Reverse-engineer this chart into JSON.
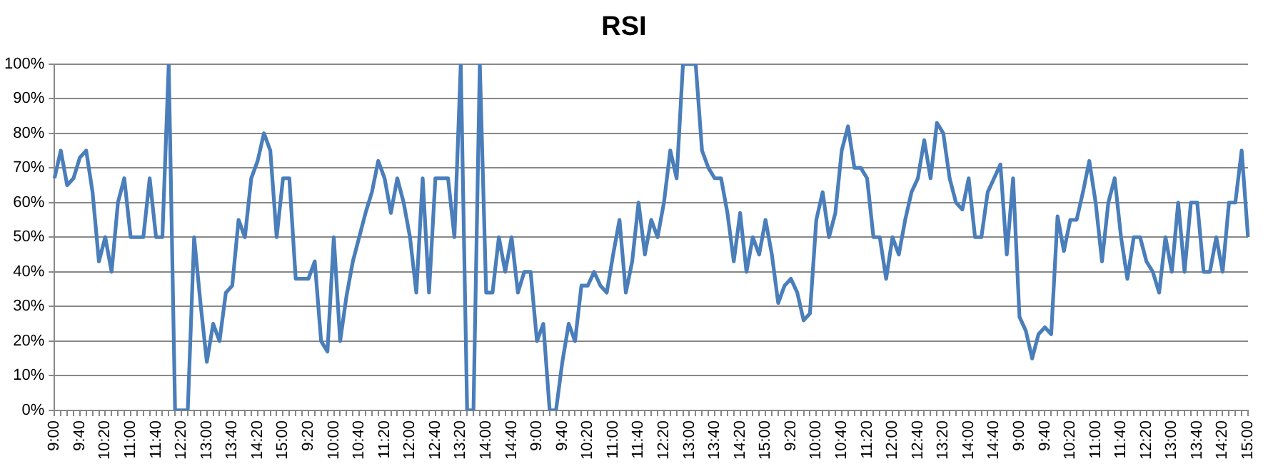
{
  "chart_data": {
    "type": "line",
    "title": "RSI",
    "categories": [
      "9:00",
      null,
      null,
      null,
      "9:40",
      null,
      null,
      null,
      "10:20",
      null,
      null,
      null,
      "11:00",
      null,
      null,
      null,
      "11:40",
      null,
      null,
      null,
      "12:20",
      null,
      null,
      null,
      "13:00",
      null,
      null,
      null,
      "13:40",
      null,
      null,
      null,
      "14:20",
      null,
      null,
      null,
      "15:00",
      null,
      null,
      null,
      "9:20",
      null,
      null,
      null,
      "10:00",
      null,
      null,
      null,
      "10:40",
      null,
      null,
      null,
      "11:20",
      null,
      null,
      null,
      "12:00",
      null,
      null,
      null,
      "12:40",
      null,
      null,
      null,
      "13:20",
      null,
      null,
      null,
      "14:00",
      null,
      null,
      null,
      "14:40",
      null,
      null,
      null,
      "9:00",
      null,
      null,
      null,
      "9:40",
      null,
      null,
      null,
      "10:20",
      null,
      null,
      null,
      "11:00",
      null,
      null,
      null,
      "11:40",
      null,
      null,
      null,
      "12:20",
      null,
      null,
      null,
      "13:00",
      null,
      null,
      null,
      "13:40",
      null,
      null,
      null,
      "14:20",
      null,
      null,
      null,
      "15:00",
      null,
      null,
      null,
      "9:20",
      null,
      null,
      null,
      "10:00",
      null,
      null,
      null,
      "10:40",
      null,
      null,
      null,
      "11:20",
      null,
      null,
      null,
      "12:00",
      null,
      null,
      null,
      "12:40",
      null,
      null,
      null,
      "13:20",
      null,
      null,
      null,
      "14:00",
      null,
      null,
      null,
      "14:40",
      null,
      null,
      null,
      "9:00",
      null,
      null,
      null,
      "9:40",
      null,
      null,
      null,
      "10:20",
      null,
      null,
      null,
      "11:00",
      null,
      null,
      null,
      "11:40",
      null,
      null,
      null,
      "12:20",
      null,
      null,
      null,
      "13:00",
      null,
      null,
      null,
      "13:40",
      null,
      null,
      null,
      "14:20",
      null,
      null,
      null,
      "15:00"
    ],
    "series": [
      {
        "color": "#4a7ebb",
        "values": [
          67,
          75,
          65,
          67,
          73,
          75,
          63,
          43,
          50,
          40,
          60,
          67,
          50,
          50,
          50,
          67,
          50,
          50,
          100,
          0,
          0,
          0,
          50,
          31,
          14,
          25,
          20,
          34,
          36,
          55,
          50,
          67,
          72,
          80,
          75,
          50,
          67,
          67,
          38,
          38,
          38,
          43,
          20,
          17,
          50,
          20,
          33,
          43,
          50,
          57,
          63,
          72,
          67,
          57,
          67,
          60,
          50,
          34,
          67,
          34,
          67,
          67,
          67,
          50,
          100,
          0,
          0,
          100,
          34,
          34,
          50,
          40,
          50,
          34,
          40,
          40,
          20,
          25,
          0,
          0,
          14,
          25,
          20,
          36,
          36,
          40,
          36,
          34,
          45,
          55,
          34,
          43,
          60,
          45,
          55,
          50,
          60,
          75,
          67,
          100,
          100,
          100,
          75,
          70,
          67,
          67,
          57,
          43,
          57,
          40,
          50,
          45,
          55,
          45,
          31,
          36,
          38,
          34,
          26,
          28,
          55,
          63,
          50,
          57,
          75,
          82,
          70,
          70,
          67,
          50,
          50,
          38,
          50,
          45,
          55,
          63,
          67,
          78,
          67,
          83,
          80,
          67,
          60,
          58,
          67,
          50,
          50,
          63,
          67,
          71,
          45,
          67,
          27,
          23,
          15,
          22,
          24,
          22,
          56,
          46,
          55,
          55,
          63,
          72,
          60,
          43,
          60,
          67,
          50,
          38,
          50,
          50,
          43,
          40,
          34,
          50,
          40,
          60,
          40,
          60,
          60,
          40,
          40,
          50,
          40,
          60,
          60,
          75,
          50
        ]
      }
    ],
    "ylim": [
      0,
      100
    ],
    "yticks": [
      {
        "value": 0,
        "label": "0%"
      },
      {
        "value": 10,
        "label": "10%"
      },
      {
        "value": 20,
        "label": "20%"
      },
      {
        "value": 30,
        "label": "30%"
      },
      {
        "value": 40,
        "label": "40%"
      },
      {
        "value": 50,
        "label": "50%"
      },
      {
        "value": 60,
        "label": "60%"
      },
      {
        "value": 70,
        "label": "70%"
      },
      {
        "value": 80,
        "label": "80%"
      },
      {
        "value": 90,
        "label": "90%"
      },
      {
        "value": 100,
        "label": "100%"
      }
    ],
    "grid": "y",
    "marker": "none",
    "line_style": "solid"
  }
}
